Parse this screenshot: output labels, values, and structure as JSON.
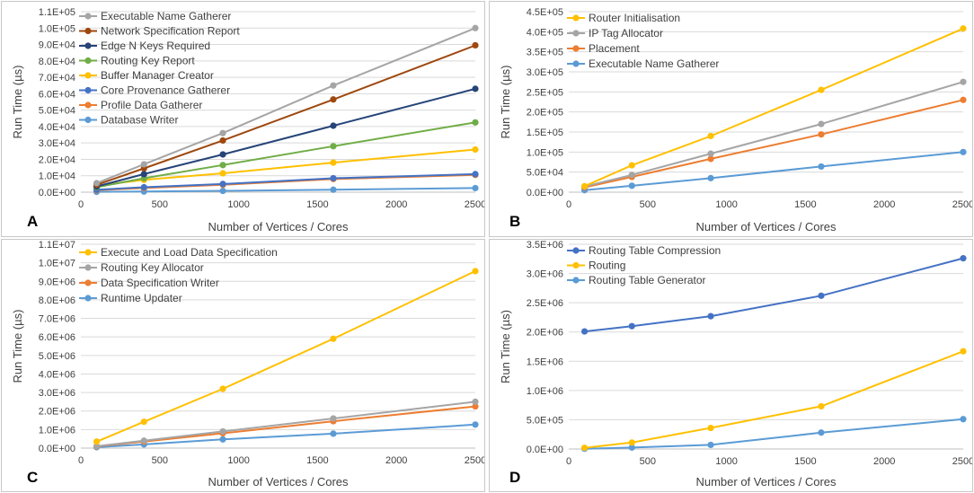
{
  "chart_data": [
    {
      "panel": "A",
      "type": "line",
      "xlabel": "Number of Vertices / Cores",
      "ylabel": "Run Time (µs)",
      "xlim": [
        0,
        2500
      ],
      "xticks": [
        0,
        500,
        1000,
        1500,
        2000,
        2500
      ],
      "xtick_labels": [
        "0",
        "500",
        "1000",
        "1500",
        "2000",
        "2500"
      ],
      "ylim": [
        0,
        110000
      ],
      "yticks": [
        0,
        10000,
        20000,
        30000,
        40000,
        50000,
        60000,
        70000,
        80000,
        90000,
        100000,
        110000
      ],
      "ytick_labels": [
        "0.0E+00",
        "1.0E+04",
        "2.0E+04",
        "3.0E+04",
        "4.0E+04",
        "5.0E+04",
        "6.0E+04",
        "7.0E+04",
        "8.0E+04",
        "9.0E+04",
        "1.0E+05",
        "1.1E+05"
      ],
      "grid": true,
      "legend": "top-left",
      "x": [
        100,
        400,
        900,
        1600,
        2500
      ],
      "series": [
        {
          "name": "Executable Name Gatherer",
          "color": "#a5a5a5",
          "values": [
            5500,
            17000,
            36000,
            65000,
            100000
          ]
        },
        {
          "name": "Network Specification Report",
          "color": "#9e480e",
          "values": [
            4500,
            14500,
            31500,
            56500,
            89500
          ]
        },
        {
          "name": "Edge N Keys Required",
          "color": "#264478",
          "values": [
            3500,
            11000,
            23000,
            40500,
            63000
          ]
        },
        {
          "name": "Routing Key Report",
          "color": "#70ad47",
          "values": [
            3000,
            8500,
            16500,
            28000,
            42500
          ]
        },
        {
          "name": "Buffer Manager Creator",
          "color": "#ffc000",
          "values": [
            4000,
            7500,
            11500,
            18000,
            26000
          ]
        },
        {
          "name": "Core Provenance Gatherer",
          "color": "#4472c4",
          "values": [
            1500,
            3000,
            5000,
            8500,
            11000
          ]
        },
        {
          "name": "Profile Data Gatherer",
          "color": "#ed7d31",
          "values": [
            1200,
            2500,
            4500,
            8000,
            10500
          ]
        },
        {
          "name": "Database Writer",
          "color": "#5b9bd5",
          "values": [
            200,
            400,
            800,
            1500,
            2500
          ]
        }
      ]
    },
    {
      "panel": "B",
      "type": "line",
      "xlabel": "Number of Vertices / Cores",
      "ylabel": "Run Time (µs)",
      "xlim": [
        0,
        2500
      ],
      "xticks": [
        0,
        500,
        1000,
        1500,
        2000,
        2500
      ],
      "xtick_labels": [
        "0",
        "500",
        "1000",
        "1500",
        "2000",
        "2500"
      ],
      "ylim": [
        0,
        450000
      ],
      "yticks": [
        0,
        50000,
        100000,
        150000,
        200000,
        250000,
        300000,
        350000,
        400000,
        450000
      ],
      "ytick_labels": [
        "0.0E+00",
        "5.0E+04",
        "1.0E+05",
        "1.5E+05",
        "2.0E+05",
        "2.5E+05",
        "3.0E+05",
        "3.5E+05",
        "4.0E+05",
        "4.5E+05"
      ],
      "grid": true,
      "legend": "top-left",
      "x": [
        100,
        400,
        900,
        1600,
        2500
      ],
      "series": [
        {
          "name": "Router Initialisation",
          "color": "#ffc000",
          "values": [
            15000,
            67000,
            140000,
            255000,
            408000
          ]
        },
        {
          "name": "IP Tag Allocator",
          "color": "#a5a5a5",
          "values": [
            14000,
            43000,
            96000,
            170000,
            275000
          ]
        },
        {
          "name": "Placement",
          "color": "#ed7d31",
          "values": [
            12000,
            38000,
            83000,
            144000,
            230000
          ]
        },
        {
          "name": "Executable Name Gatherer",
          "color": "#5b9bd5",
          "values": [
            5000,
            16000,
            35000,
            64000,
            100000
          ]
        }
      ]
    },
    {
      "panel": "C",
      "type": "line",
      "xlabel": "Number of Vertices / Cores",
      "ylabel": "Run Time (µs)",
      "xlim": [
        0,
        2500
      ],
      "xticks": [
        0,
        500,
        1000,
        1500,
        2000,
        2500
      ],
      "xtick_labels": [
        "0",
        "500",
        "1000",
        "1500",
        "2000",
        "2500"
      ],
      "ylim": [
        0,
        11000000
      ],
      "yticks": [
        0,
        1000000,
        2000000,
        3000000,
        4000000,
        5000000,
        6000000,
        7000000,
        8000000,
        9000000,
        10000000,
        11000000
      ],
      "ytick_labels": [
        "0.0E+00",
        "1.0E+06",
        "2.0E+06",
        "3.0E+06",
        "4.0E+06",
        "5.0E+06",
        "6.0E+06",
        "7.0E+06",
        "8.0E+06",
        "9.0E+06",
        "1.0E+07",
        "1.1E+07"
      ],
      "grid": true,
      "legend": "top-left",
      "x": [
        100,
        400,
        900,
        1600,
        2500
      ],
      "series": [
        {
          "name": "Execute and Load Data Specification",
          "color": "#ffc000",
          "values": [
            350000,
            1420000,
            3200000,
            5900000,
            9550000
          ]
        },
        {
          "name": "Routing Key Allocator",
          "color": "#a5a5a5",
          "values": [
            100000,
            400000,
            900000,
            1600000,
            2500000
          ]
        },
        {
          "name": "Data Specification Writer",
          "color": "#ed7d31",
          "values": [
            90000,
            350000,
            800000,
            1450000,
            2250000
          ]
        },
        {
          "name": "Runtime Updater",
          "color": "#5b9bd5",
          "values": [
            50000,
            200000,
            470000,
            780000,
            1270000
          ]
        }
      ]
    },
    {
      "panel": "D",
      "type": "line",
      "xlabel": "Number of Vertices / Cores",
      "ylabel": "Run Time (µs)",
      "xlim": [
        0,
        2500
      ],
      "xticks": [
        0,
        500,
        1000,
        1500,
        2000,
        2500
      ],
      "xtick_labels": [
        "0",
        "500",
        "1000",
        "1500",
        "2000",
        "2500"
      ],
      "ylim": [
        0,
        3500000
      ],
      "yticks": [
        0,
        500000,
        1000000,
        1500000,
        2000000,
        2500000,
        3000000,
        3500000
      ],
      "ytick_labels": [
        "0.0E+00",
        "5.0E+05",
        "1.0E+06",
        "1.5E+06",
        "2.0E+06",
        "2.5E+06",
        "3.0E+06",
        "3.5E+06"
      ],
      "grid": true,
      "legend": "top-left",
      "x": [
        100,
        400,
        900,
        1600,
        2500
      ],
      "series": [
        {
          "name": "Routing Table Compression",
          "color": "#4472c4",
          "values": [
            2010000,
            2100000,
            2270000,
            2620000,
            3260000
          ]
        },
        {
          "name": "Routing",
          "color": "#ffc000",
          "values": [
            20000,
            110000,
            360000,
            730000,
            1670000
          ]
        },
        {
          "name": "Routing Table Generator",
          "color": "#5b9bd5",
          "values": [
            5000,
            25000,
            70000,
            280000,
            510000
          ]
        }
      ]
    }
  ]
}
